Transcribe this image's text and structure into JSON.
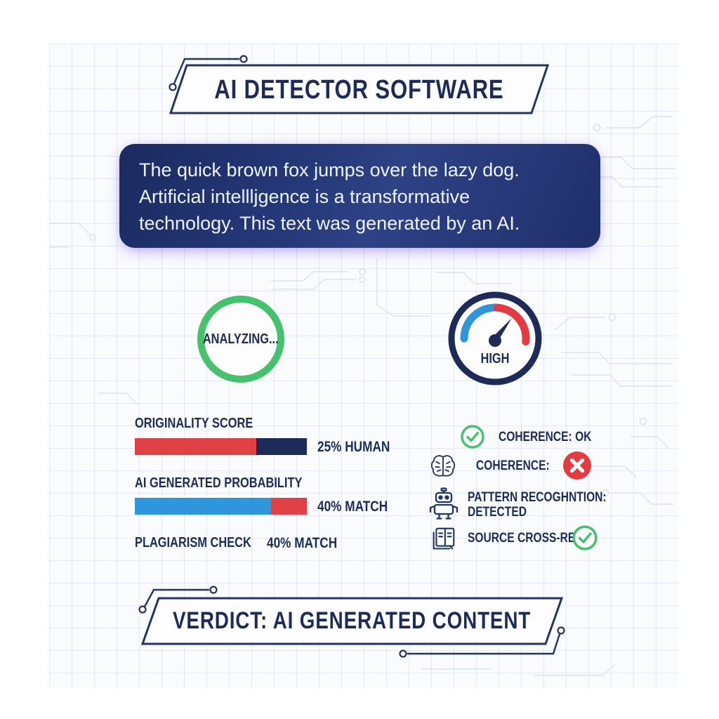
{
  "title_banner": {
    "text": "AI DETECTOR SOFTWARE"
  },
  "input_text": {
    "lines": [
      "The quick brown fox jumps over the lazy dog.",
      "Artificial intellljgence is a transformative",
      "technology. This text was generated by an AI."
    ]
  },
  "analyzing": {
    "label": "ANALYZING..."
  },
  "gauge": {
    "label": "HIGH",
    "low_color": "#3096dc",
    "high_color": "#e23b42",
    "ring_color": "#1e2b58"
  },
  "metrics": [
    {
      "label": "ORIGINALITY SCORE",
      "value_text": "25% HUMAN",
      "bar": {
        "segments": [
          {
            "color": "#e04146",
            "pct": 70.5
          },
          {
            "color": "#1e2b58",
            "pct": 29.5
          }
        ]
      }
    },
    {
      "label": "AI GENERATED PROBABILITY",
      "value_text": "40% MATCH",
      "bar": {
        "segments": [
          {
            "color": "#3096dc",
            "pct": 79
          },
          {
            "color": "#e04146",
            "pct": 21
          }
        ]
      }
    },
    {
      "label": "PLAGIARISM CHECK",
      "value_text": "40% MATCH",
      "bar": null
    }
  ],
  "statuses": [
    {
      "icon": "check-circle-icon",
      "text": "COHERENCE: OK"
    },
    {
      "icon": "brain-icon",
      "text": "COHERENCE:",
      "trailing_icon": "x-circle-icon"
    },
    {
      "icon": "robot-icon",
      "text": "PATTERN RECOGHNTION:",
      "text2": "DETECTED"
    },
    {
      "icon": "book-icon",
      "text": "SOURCE CROSS-REF:",
      "trailing_icon": "check-circle-icon"
    }
  ],
  "verdict_banner": {
    "text": "VERDICT: AI GENERATED CONTENT"
  },
  "colors": {
    "navy": "#1e2b58",
    "red": "#e23b42",
    "blue": "#3096dc",
    "green": "#46c16d",
    "panel_grid": "#d0daе9",
    "box_gradient_start": "#1c2a60",
    "box_gradient_end": "#2e4286",
    "purple_glow": "#6e46dc"
  }
}
